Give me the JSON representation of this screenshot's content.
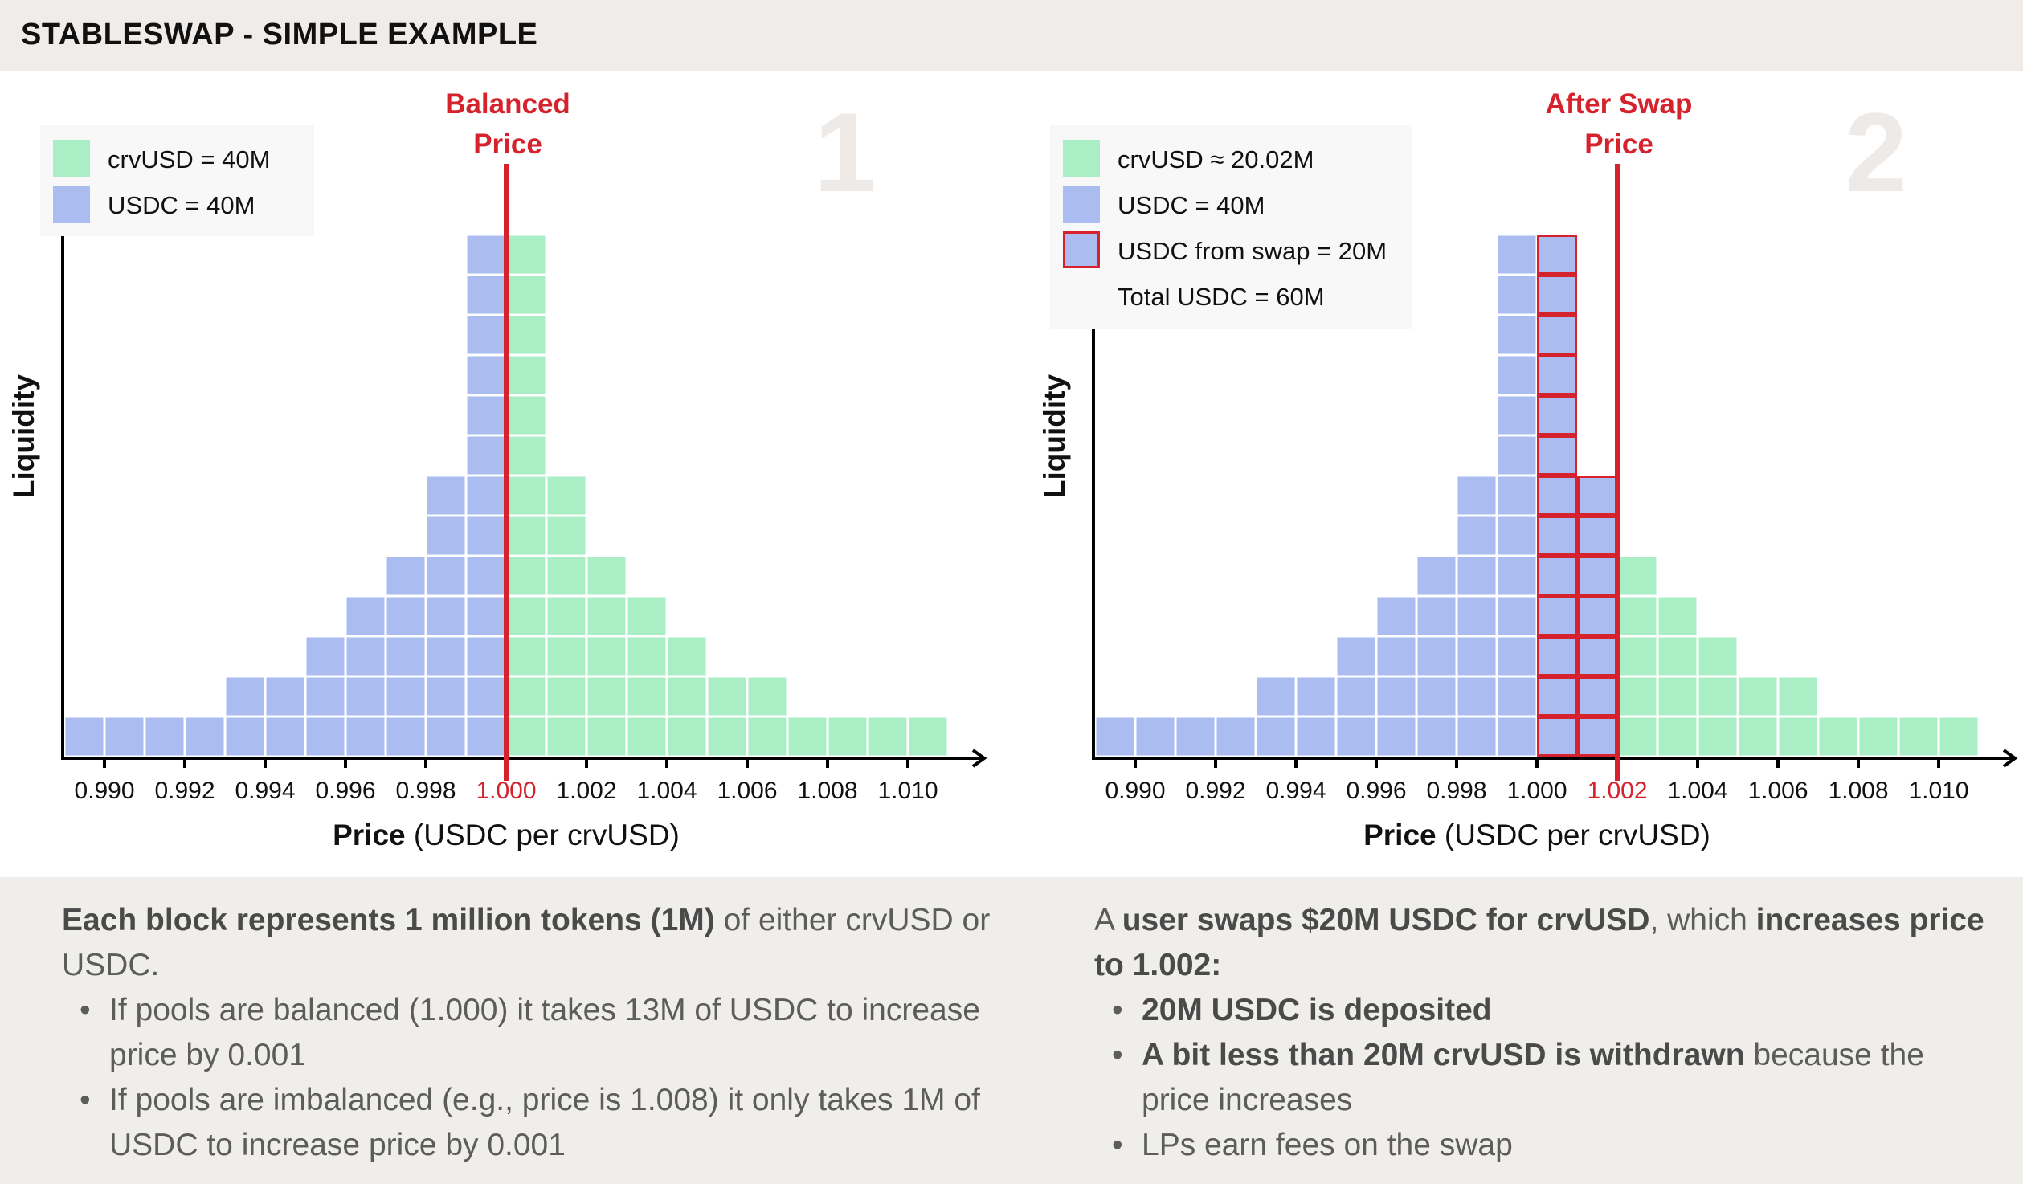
{
  "header": {
    "title": "STABLESWAP - SIMPLE EXAMPLE"
  },
  "colors": {
    "crvusd": "#aaeec6",
    "usdc": "#abbcf0",
    "marker": "#d6222c",
    "bignum": "#eeeae7"
  },
  "charts": [
    {
      "number": "1",
      "marker_lines": [
        "Balanced",
        "Price"
      ],
      "legend": [
        {
          "label": "crvUSD = 40M",
          "swatch": "crvusd"
        },
        {
          "label": "USDC = 40M",
          "swatch": "usdc"
        }
      ]
    },
    {
      "number": "2",
      "marker_lines": [
        "After Swap",
        "Price"
      ],
      "legend": [
        {
          "label": "crvUSD ≈ 20.02M",
          "swatch": "crvusd"
        },
        {
          "label": "USDC = 40M",
          "swatch": "usdc"
        },
        {
          "label": "USDC from swap = 20M",
          "swatch": "swap"
        },
        {
          "label": "Total USDC = 60M",
          "swatch": "none"
        }
      ]
    }
  ],
  "chart_data": [
    {
      "type": "bar",
      "stacked": true,
      "ylabel": "Liquidity",
      "xlabel_bold": "Price",
      "xlabel_rest": " (USDC per crvUSD)",
      "bin_start": 0.989,
      "bin_width": 0.001,
      "tick_labels": [
        "0.990",
        "0.992",
        "0.994",
        "0.996",
        "0.998",
        "1.000",
        "1.002",
        "1.004",
        "1.006",
        "1.008",
        "1.010"
      ],
      "highlight_tick": "1.000",
      "marker_price": 1.0,
      "series": [
        {
          "name": "USDC",
          "color_key": "usdc",
          "values": [
            1,
            1,
            1,
            1,
            2,
            2,
            3,
            4,
            5,
            7,
            13,
            0,
            0,
            0,
            0,
            0,
            0,
            0,
            0,
            0,
            0,
            0
          ]
        },
        {
          "name": "crvUSD",
          "color_key": "crvusd",
          "values": [
            0,
            0,
            0,
            0,
            0,
            0,
            0,
            0,
            0,
            0,
            0,
            13,
            7,
            5,
            4,
            3,
            2,
            2,
            1,
            1,
            1,
            1
          ]
        }
      ]
    },
    {
      "type": "bar",
      "stacked": true,
      "ylabel": "Liquidity",
      "xlabel_bold": "Price",
      "xlabel_rest": " (USDC per crvUSD)",
      "bin_start": 0.989,
      "bin_width": 0.001,
      "tick_labels": [
        "0.990",
        "0.992",
        "0.994",
        "0.996",
        "0.998",
        "1.000",
        "1.002",
        "1.004",
        "1.006",
        "1.008",
        "1.010"
      ],
      "highlight_tick": "1.002",
      "marker_price": 1.002,
      "series": [
        {
          "name": "USDC",
          "color_key": "usdc",
          "values": [
            1,
            1,
            1,
            1,
            2,
            2,
            3,
            4,
            5,
            7,
            13,
            0,
            0,
            0,
            0,
            0,
            0,
            0,
            0,
            0,
            0,
            0
          ]
        },
        {
          "name": "USDC from swap",
          "color_key": "swap",
          "values": [
            0,
            0,
            0,
            0,
            0,
            0,
            0,
            0,
            0,
            0,
            0,
            13,
            7,
            0,
            0,
            0,
            0,
            0,
            0,
            0,
            0,
            0
          ]
        },
        {
          "name": "crvUSD",
          "color_key": "crvusd",
          "values": [
            0,
            0,
            0,
            0,
            0,
            0,
            0,
            0,
            0,
            0,
            0,
            0,
            0,
            5,
            4,
            3,
            2,
            2,
            1,
            1,
            1,
            1
          ]
        }
      ]
    }
  ],
  "notes": [
    {
      "intro": [
        {
          "t": "Each block represents 1 million tokens (1M)",
          "b": true
        },
        {
          "t": " of either crvUSD or USDC.",
          "b": false
        }
      ],
      "bullets": [
        [
          {
            "t": "If pools are balanced (1.000) it takes 13M of USDC to increase price by 0.001",
            "b": false
          }
        ],
        [
          {
            "t": "If pools are imbalanced (e.g., price is 1.008) it only takes 1M of USDC to increase price by 0.001",
            "b": false
          }
        ]
      ]
    },
    {
      "intro": [
        {
          "t": "A ",
          "b": false
        },
        {
          "t": "user swaps $20M USDC for crvUSD",
          "b": true
        },
        {
          "t": ", which ",
          "b": false
        },
        {
          "t": "increases price to 1.002:",
          "b": true
        }
      ],
      "bullets": [
        [
          {
            "t": "20M USDC is deposited",
            "b": true
          }
        ],
        [
          {
            "t": "A bit less than 20M crvUSD is withdrawn",
            "b": true
          },
          {
            "t": " because the price increases",
            "b": false
          }
        ],
        [
          {
            "t": "LPs earn fees on the swap",
            "b": false
          }
        ]
      ]
    }
  ]
}
